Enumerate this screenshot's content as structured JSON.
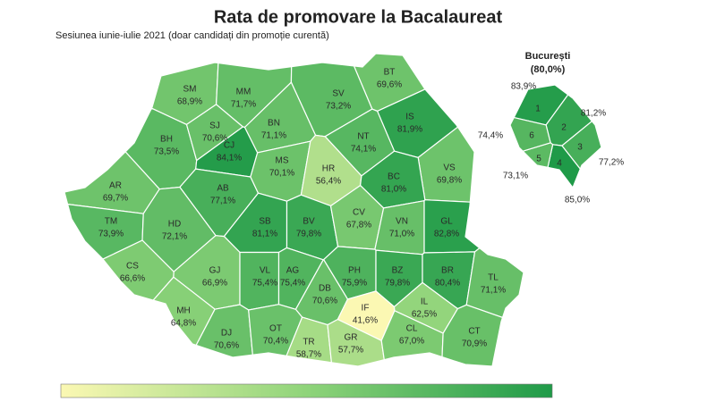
{
  "chart_data": {
    "type": "choropleth",
    "title": "Rata de promovare la Bacalaureat",
    "subtitle": "Sesiunea iunie-iulie 2021 (doar candidați din promoție curentă)",
    "colors": [
      "#fbf8b3",
      "#8fd47a",
      "#1f9a48"
    ],
    "categories": [
      "SM",
      "MM",
      "BT",
      "SV",
      "IS",
      "BH",
      "SJ",
      "CJ",
      "BN",
      "NT",
      "VS",
      "AR",
      "AB",
      "MS",
      "HR",
      "BC",
      "TM",
      "HD",
      "SB",
      "BV",
      "CV",
      "VN",
      "GL",
      "CS",
      "GJ",
      "VL",
      "AG",
      "DB",
      "PH",
      "BZ",
      "BR",
      "TL",
      "MH",
      "DJ",
      "OT",
      "TR",
      "GR",
      "IF",
      "IL",
      "CL",
      "CT"
    ],
    "values": [
      68.9,
      71.7,
      69.6,
      73.2,
      81.9,
      73.5,
      70.6,
      84.1,
      71.1,
      74.1,
      69.8,
      69.7,
      77.1,
      70.1,
      56.4,
      81.0,
      73.9,
      72.1,
      81.1,
      79.8,
      67.8,
      71.0,
      82.8,
      66.6,
      66.9,
      75.4,
      75.4,
      70.6,
      75.9,
      79.8,
      80.4,
      71.1,
      64.8,
      70.6,
      70.4,
      58.7,
      57.7,
      41.6,
      62.5,
      67.0,
      70.9
    ],
    "value_labels": [
      "68,9%",
      "71,7%",
      "69,6%",
      "73,2%",
      "81,9%",
      "73,5%",
      "70,6%",
      "84,1%",
      "71,1%",
      "74,1%",
      "69,8%",
      "69,7%",
      "77,1%",
      "70,1%",
      "56,4%",
      "81,0%",
      "73,9%",
      "72,1%",
      "81,1%",
      "79,8%",
      "67,8%",
      "71,0%",
      "82,8%",
      "66,6%",
      "66,9%",
      "75,4%",
      "75,4%",
      "70,6%",
      "75,9%",
      "79,8%",
      "80,4%",
      "71,1%",
      "64,8%",
      "70,6%",
      "70,4%",
      "58,7%",
      "57,7%",
      "41,6%",
      "62,5%",
      "67,0%",
      "70,9%"
    ],
    "inset": {
      "title": "București",
      "value": 80.0,
      "value_label": "(80,0%)",
      "categories": [
        "1",
        "2",
        "3",
        "4",
        "5",
        "6"
      ],
      "values": [
        83.9,
        81.2,
        77.2,
        85.0,
        73.1,
        74.4
      ],
      "value_labels": [
        "83,9%",
        "81,2%",
        "77,2%",
        "85,0%",
        "73,1%",
        "74,4%"
      ]
    }
  }
}
